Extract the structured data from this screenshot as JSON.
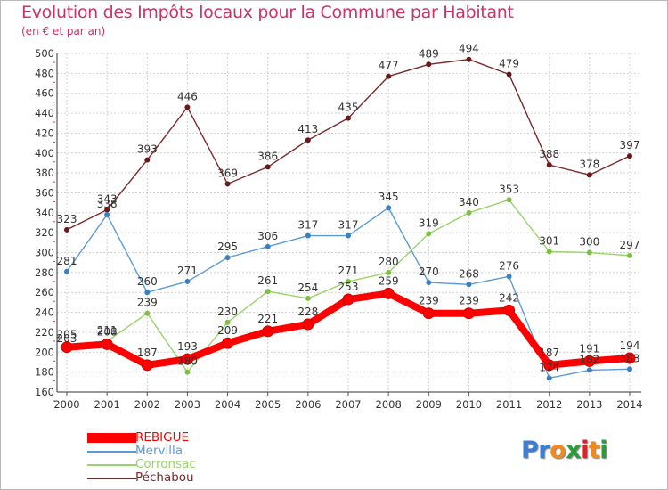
{
  "title": "Evolution des Impôts locaux pour la Commune par Habitant",
  "subtitle": "(en € et par an)",
  "logo": {
    "text": "Proxiti",
    "letters": [
      "P",
      "r",
      "o",
      "x",
      "i",
      "t",
      "i"
    ],
    "colors": [
      "#3a7fd5",
      "#3a7fd5",
      "#f08a1c",
      "#2a9d3a",
      "#d8232a",
      "#f08a1c",
      "#2a9d3a"
    ]
  },
  "chart_data": {
    "type": "line",
    "title": "Evolution des Impôts locaux pour la Commune par Habitant",
    "subtitle": "(en € et par an)",
    "xlabel": "",
    "ylabel": "",
    "categories": [
      "2000",
      "2001",
      "2002",
      "2003",
      "2004",
      "2005",
      "2006",
      "2007",
      "2008",
      "2009",
      "2010",
      "2011",
      "2012",
      "2013",
      "2014"
    ],
    "ylim": [
      160,
      500
    ],
    "yticks": [
      160,
      180,
      200,
      220,
      240,
      260,
      280,
      300,
      320,
      340,
      360,
      380,
      400,
      420,
      440,
      460,
      480,
      500
    ],
    "grid": true,
    "legend_position": "bottom-left",
    "series": [
      {
        "name": "Péchabou",
        "color": "#7a2a2a",
        "marker": "#6a1818",
        "values": [
          323,
          343,
          393,
          446,
          369,
          386,
          413,
          435,
          477,
          489,
          494,
          479,
          388,
          378,
          397
        ],
        "labels": [
          "323",
          "343",
          "393",
          "446",
          "369",
          "386",
          "413",
          "435",
          "477",
          "489",
          "494",
          "479",
          "388",
          "378",
          "397"
        ]
      },
      {
        "name": "Mervilla",
        "color": "#5b9bd5",
        "marker": "#3a7fc0",
        "values": [
          281,
          338,
          260,
          271,
          295,
          306,
          317,
          317,
          345,
          270,
          268,
          276,
          174,
          182,
          183
        ],
        "labels": [
          "281",
          "338",
          "260",
          "271",
          "295",
          "306",
          "317",
          "317",
          "345",
          "270",
          "268",
          "276",
          "174",
          "182",
          "183"
        ]
      },
      {
        "name": "Corronsac",
        "color": "#9ad36a",
        "marker": "#7cc242",
        "values": [
          203,
          211,
          239,
          180,
          230,
          261,
          254,
          271,
          280,
          319,
          340,
          353,
          301,
          300,
          297
        ],
        "labels": [
          "203",
          "211",
          "239",
          "180",
          "230",
          "261",
          "254",
          "271",
          "280",
          "319",
          "340",
          "353",
          "301",
          "300",
          "297"
        ]
      },
      {
        "name": "REBIGUE",
        "color": "#ff0000",
        "marker": "#ff0000",
        "values": [
          205,
          208,
          187,
          193,
          209,
          221,
          228,
          253,
          259,
          239,
          239,
          242,
          187,
          191,
          194
        ],
        "labels": [
          "205",
          "208",
          "187",
          "193",
          "209",
          "221",
          "228",
          "253",
          "259",
          "239",
          "239",
          "242",
          "187",
          "191",
          "194"
        ]
      }
    ],
    "legend": [
      {
        "name": "REBIGUE",
        "color": "#ff0000"
      },
      {
        "name": "Mervilla",
        "color": "#5b9bd5"
      },
      {
        "name": "Corronsac",
        "color": "#9ad36a"
      },
      {
        "name": "Péchabou",
        "color": "#7a2a2a"
      }
    ]
  }
}
